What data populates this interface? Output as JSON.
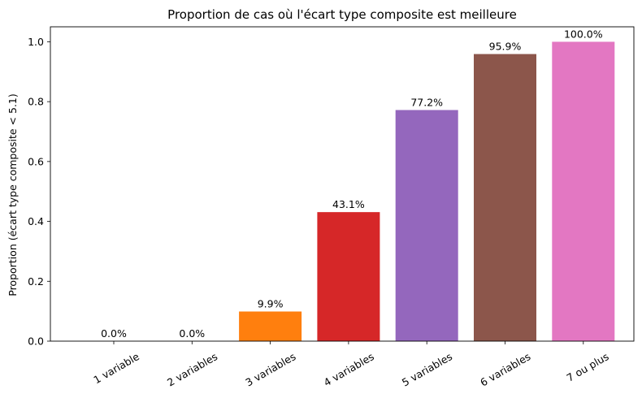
{
  "chart_data": {
    "type": "bar",
    "title": "Proportion de cas où l'écart type composite est meilleure",
    "xlabel": "",
    "ylabel": "Proportion (écart type composite < 5.1)",
    "categories": [
      "1 variable",
      "2 variables",
      "3 variables",
      "4 variables",
      "5 variables",
      "6 variables",
      "7 ou plus"
    ],
    "values": [
      0.0,
      0.0,
      0.099,
      0.431,
      0.772,
      0.959,
      1.0
    ],
    "data_labels": [
      "0.0%",
      "0.0%",
      "9.9%",
      "43.1%",
      "77.2%",
      "95.9%",
      "100.0%"
    ],
    "colors": [
      "#1f77b4",
      "#ff7f0e",
      "#ff7f0e",
      "#d62728",
      "#9467bd",
      "#8c564b",
      "#e377c2"
    ],
    "ylim": [
      0,
      1.05
    ],
    "yticks": [
      "0.0",
      "0.2",
      "0.4",
      "0.6",
      "0.8",
      "1.0"
    ],
    "ytick_values": [
      0,
      0.2,
      0.4,
      0.6,
      0.8,
      1.0
    ],
    "grid": false,
    "legend": "none"
  }
}
